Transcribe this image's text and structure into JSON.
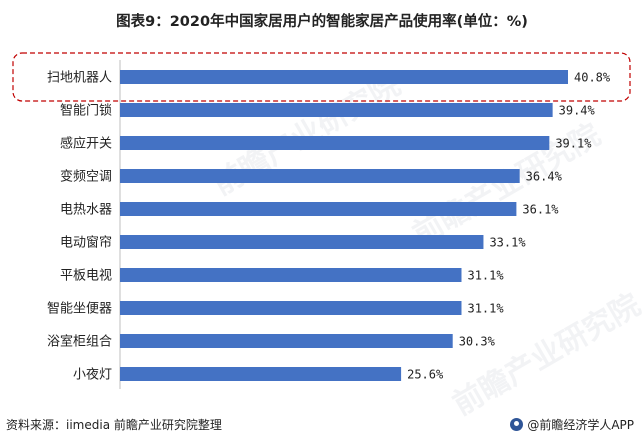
{
  "title": "图表9：2020年中国家居用户的智能家居产品使用率(单位：%)",
  "source": "资料来源：iimedia 前瞻产业研究院整理",
  "brand": "@前瞻经济学人APP",
  "watermark": "前瞻产业研究院",
  "colors": {
    "bar": "#4472c4",
    "highlight_border": "#c00000"
  },
  "chart_data": {
    "type": "bar",
    "orientation": "horizontal",
    "categories": [
      "扫地机器人",
      "智能门锁",
      "感应开关",
      "变频空调",
      "电热水器",
      "电动窗帘",
      "平板电视",
      "智能坐便器",
      "浴室柜组合",
      "小夜灯"
    ],
    "values": [
      40.8,
      39.4,
      39.1,
      36.4,
      36.1,
      33.1,
      31.1,
      31.1,
      30.3,
      25.6
    ],
    "labels": [
      "40.8%",
      "39.4%",
      "39.1%",
      "36.4%",
      "36.1%",
      "33.1%",
      "31.1%",
      "31.1%",
      "30.3%",
      "25.6%"
    ],
    "highlight_index": 0,
    "xlim": [
      0,
      45
    ],
    "grid": false,
    "legend": "none"
  }
}
